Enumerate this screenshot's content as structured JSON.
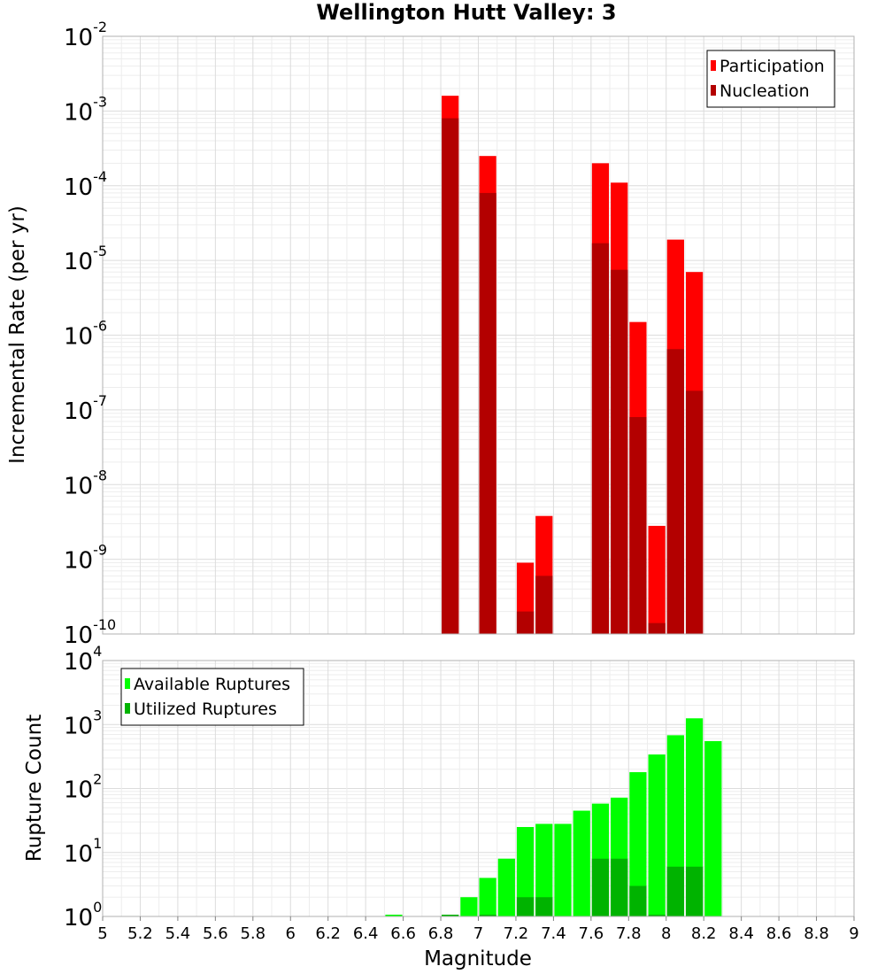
{
  "chart_data": [
    {
      "type": "bar",
      "title": "Wellington Hutt Valley: 3",
      "xlabel": "",
      "ylabel": "Incremental Rate (per yr)",
      "yscale": "log",
      "ylim": [
        1e-10,
        0.01
      ],
      "y_ticks": [
        {
          "base": "10",
          "exp": "-10"
        },
        {
          "base": "10",
          "exp": "-9"
        },
        {
          "base": "10",
          "exp": "-8"
        },
        {
          "base": "10",
          "exp": "-7"
        },
        {
          "base": "10",
          "exp": "-6"
        },
        {
          "base": "10",
          "exp": "-5"
        },
        {
          "base": "10",
          "exp": "-4"
        },
        {
          "base": "10",
          "exp": "-3"
        },
        {
          "base": "10",
          "exp": "-2"
        }
      ],
      "grid": true,
      "legend_position": "top-right",
      "series": [
        {
          "name": "Participation",
          "color": "#ff0000",
          "points": [
            {
              "x": 6.85,
              "y": 0.0016
            },
            {
              "x": 7.05,
              "y": 0.00025
            },
            {
              "x": 7.25,
              "y": 9e-10
            },
            {
              "x": 7.35,
              "y": 3.8e-09
            },
            {
              "x": 7.65,
              "y": 0.0002
            },
            {
              "x": 7.75,
              "y": 0.00011
            },
            {
              "x": 7.85,
              "y": 1.5e-06
            },
            {
              "x": 7.95,
              "y": 2.8e-09
            },
            {
              "x": 8.05,
              "y": 1.9e-05
            },
            {
              "x": 8.15,
              "y": 7e-06
            }
          ]
        },
        {
          "name": "Nucleation",
          "color": "#b30000",
          "points": [
            {
              "x": 6.85,
              "y": 0.0008
            },
            {
              "x": 7.05,
              "y": 8e-05
            },
            {
              "x": 7.25,
              "y": 2e-10
            },
            {
              "x": 7.35,
              "y": 6e-10
            },
            {
              "x": 7.65,
              "y": 1.7e-05
            },
            {
              "x": 7.75,
              "y": 7.5e-06
            },
            {
              "x": 7.85,
              "y": 8e-08
            },
            {
              "x": 7.95,
              "y": 1.4e-10
            },
            {
              "x": 8.05,
              "y": 6.5e-07
            },
            {
              "x": 8.15,
              "y": 1.8e-07
            }
          ]
        }
      ]
    },
    {
      "type": "bar",
      "title": "",
      "xlabel": "Magnitude",
      "ylabel": "Rupture Count",
      "yscale": "log",
      "ylim": [
        1,
        10000
      ],
      "xlim": [
        5,
        9
      ],
      "x_ticks": [
        "5",
        "5.2",
        "5.4",
        "5.6",
        "5.8",
        "6",
        "6.2",
        "6.4",
        "6.6",
        "6.8",
        "7",
        "7.2",
        "7.4",
        "7.6",
        "7.8",
        "8",
        "8.2",
        "8.4",
        "8.6",
        "8.8",
        "9"
      ],
      "y_ticks": [
        {
          "base": "10",
          "exp": "0"
        },
        {
          "base": "10",
          "exp": "1"
        },
        {
          "base": "10",
          "exp": "2"
        },
        {
          "base": "10",
          "exp": "3"
        },
        {
          "base": "10",
          "exp": "4"
        }
      ],
      "grid": true,
      "legend_position": "top-left",
      "series": [
        {
          "name": "Available Ruptures",
          "color": "#00ff00",
          "points": [
            {
              "x": 6.55,
              "y": 1
            },
            {
              "x": 6.85,
              "y": 1
            },
            {
              "x": 6.95,
              "y": 2
            },
            {
              "x": 7.05,
              "y": 4
            },
            {
              "x": 7.15,
              "y": 8
            },
            {
              "x": 7.25,
              "y": 25
            },
            {
              "x": 7.35,
              "y": 28
            },
            {
              "x": 7.45,
              "y": 28
            },
            {
              "x": 7.55,
              "y": 45
            },
            {
              "x": 7.65,
              "y": 58
            },
            {
              "x": 7.75,
              "y": 72
            },
            {
              "x": 7.85,
              "y": 180
            },
            {
              "x": 7.95,
              "y": 340
            },
            {
              "x": 8.05,
              "y": 680
            },
            {
              "x": 8.15,
              "y": 1250
            },
            {
              "x": 8.25,
              "y": 550
            }
          ]
        },
        {
          "name": "Utilized Ruptures",
          "color": "#00b300",
          "points": [
            {
              "x": 6.85,
              "y": 1
            },
            {
              "x": 7.05,
              "y": 1
            },
            {
              "x": 7.25,
              "y": 2
            },
            {
              "x": 7.35,
              "y": 2
            },
            {
              "x": 7.65,
              "y": 8
            },
            {
              "x": 7.75,
              "y": 8
            },
            {
              "x": 7.85,
              "y": 3
            },
            {
              "x": 7.95,
              "y": 1
            },
            {
              "x": 8.05,
              "y": 6
            },
            {
              "x": 8.15,
              "y": 6
            }
          ]
        }
      ]
    }
  ]
}
